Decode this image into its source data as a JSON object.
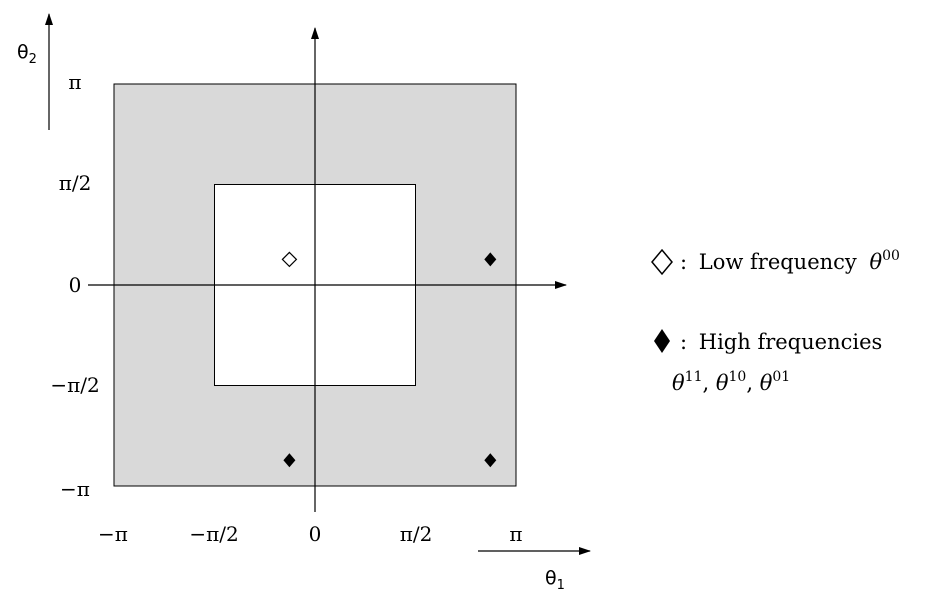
{
  "diagram": {
    "axes": {
      "x_symbol": "θ",
      "x_subscript": "1",
      "y_symbol": "θ",
      "y_subscript": "2"
    },
    "x_ticks": [
      "−π",
      "−π/2",
      "0",
      "π/2",
      "π"
    ],
    "y_ticks": [
      "π",
      "π/2",
      "0",
      "−π/2",
      "−π"
    ],
    "outer_region": {
      "x_range": [
        -3.1416,
        3.1416
      ],
      "y_range": [
        -3.1416,
        3.1416
      ],
      "fill": "#d9d9d9"
    },
    "inner_region": {
      "x_range": [
        -1.5708,
        1.5708
      ],
      "y_range": [
        -1.5708,
        1.5708
      ],
      "fill": "#ffffff"
    },
    "markers": [
      {
        "kind": "low",
        "style": "open-diamond",
        "x": -0.4,
        "y": 0.4
      },
      {
        "kind": "high",
        "style": "filled-diamond",
        "x": 2.74,
        "y": 0.4
      },
      {
        "kind": "high",
        "style": "filled-diamond",
        "x": -0.4,
        "y": -2.74
      },
      {
        "kind": "high",
        "style": "filled-diamond",
        "x": 2.74,
        "y": -2.74
      }
    ]
  },
  "legend": {
    "low": {
      "colon": ":",
      "text": "Low frequency",
      "symbol": "θ",
      "superscript": "00"
    },
    "high": {
      "colon": ":",
      "text": "High frequencies",
      "symbols": [
        {
          "symbol": "θ",
          "superscript": "11"
        },
        {
          "symbol": "θ",
          "superscript": "10"
        },
        {
          "symbol": "θ",
          "superscript": "01"
        }
      ],
      "separator": ", "
    }
  }
}
